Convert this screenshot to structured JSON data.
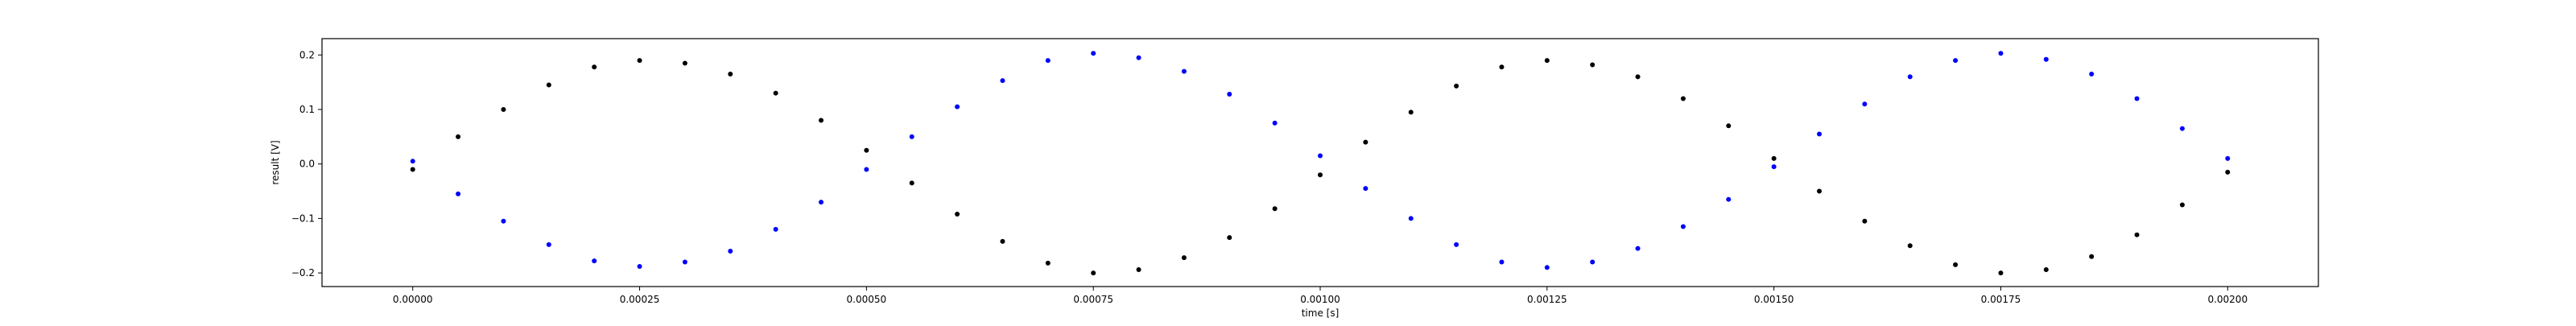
{
  "chart_data": {
    "type": "scatter",
    "title": "",
    "xlabel": "time [s]",
    "ylabel": "result [V]",
    "xlim": [
      -0.0001,
      0.0021
    ],
    "ylim": [
      -0.225,
      0.23
    ],
    "grid": false,
    "legend": "none",
    "x_ticks": [
      {
        "value": 0.0,
        "label": "0.00000"
      },
      {
        "value": 0.00025,
        "label": "0.00025"
      },
      {
        "value": 0.0005,
        "label": "0.00050"
      },
      {
        "value": 0.00075,
        "label": "0.00075"
      },
      {
        "value": 0.001,
        "label": "0.00100"
      },
      {
        "value": 0.00125,
        "label": "0.00125"
      },
      {
        "value": 0.0015,
        "label": "0.00150"
      },
      {
        "value": 0.00175,
        "label": "0.00175"
      },
      {
        "value": 0.002,
        "label": "0.00200"
      }
    ],
    "y_ticks": [
      {
        "value": -0.2,
        "label": "−0.2"
      },
      {
        "value": -0.1,
        "label": "−0.1"
      },
      {
        "value": 0.0,
        "label": "0.0"
      },
      {
        "value": 0.1,
        "label": "0.1"
      },
      {
        "value": 0.2,
        "label": "0.2"
      }
    ],
    "series": [
      {
        "color": "#000000",
        "x": [
          0.0,
          5e-05,
          0.0001,
          0.00015,
          0.0002,
          0.00025,
          0.0003,
          0.00035,
          0.0004,
          0.00045,
          0.0005,
          0.00055,
          0.0006,
          0.00065,
          0.0007,
          0.00075,
          0.0008,
          0.00085,
          0.0009,
          0.00095,
          0.001,
          0.00105,
          0.0011,
          0.00115,
          0.0012,
          0.00125,
          0.0013,
          0.00135,
          0.0014,
          0.00145,
          0.0015,
          0.00155,
          0.0016,
          0.00165,
          0.0017,
          0.00175,
          0.0018,
          0.00185,
          0.0019,
          0.00195,
          0.002
        ],
        "y": [
          -0.01,
          0.05,
          0.1,
          0.145,
          0.178,
          0.19,
          0.185,
          0.165,
          0.13,
          0.08,
          0.025,
          -0.035,
          -0.092,
          -0.142,
          -0.182,
          -0.2,
          -0.194,
          -0.172,
          -0.135,
          -0.082,
          -0.02,
          0.04,
          0.095,
          0.143,
          0.178,
          0.19,
          0.182,
          0.16,
          0.12,
          0.07,
          0.01,
          -0.05,
          -0.105,
          -0.15,
          -0.185,
          -0.2,
          -0.194,
          -0.17,
          -0.13,
          -0.075,
          -0.015
        ]
      },
      {
        "color": "#0000ff",
        "x": [
          0.0,
          5e-05,
          0.0001,
          0.00015,
          0.0002,
          0.00025,
          0.0003,
          0.00035,
          0.0004,
          0.00045,
          0.0005,
          0.00055,
          0.0006,
          0.00065,
          0.0007,
          0.00075,
          0.0008,
          0.00085,
          0.0009,
          0.00095,
          0.001,
          0.00105,
          0.0011,
          0.00115,
          0.0012,
          0.00125,
          0.0013,
          0.00135,
          0.0014,
          0.00145,
          0.0015,
          0.00155,
          0.0016,
          0.00165,
          0.0017,
          0.00175,
          0.0018,
          0.00185,
          0.0019,
          0.00195,
          0.002
        ],
        "y": [
          0.005,
          -0.055,
          -0.105,
          -0.148,
          -0.178,
          -0.188,
          -0.18,
          -0.16,
          -0.12,
          -0.07,
          -0.01,
          0.05,
          0.105,
          0.153,
          0.19,
          0.203,
          0.195,
          0.17,
          0.128,
          0.075,
          0.015,
          -0.045,
          -0.1,
          -0.148,
          -0.18,
          -0.19,
          -0.18,
          -0.155,
          -0.115,
          -0.065,
          -0.005,
          0.055,
          0.11,
          0.16,
          0.19,
          0.203,
          0.192,
          0.165,
          0.12,
          0.065,
          0.01
        ]
      }
    ]
  }
}
